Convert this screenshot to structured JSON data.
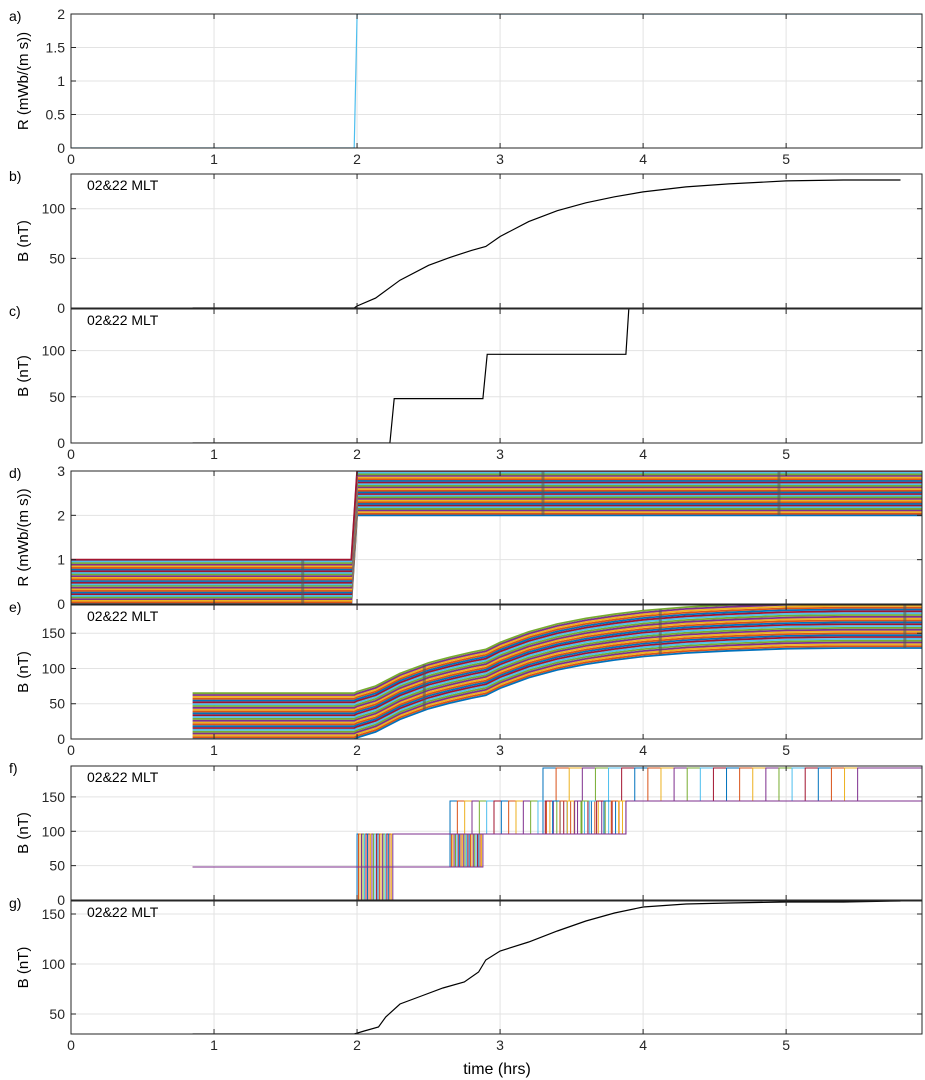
{
  "figure": {
    "xlabel": "time (hrs)",
    "colors": [
      "#0072BD",
      "#D95319",
      "#EDB120",
      "#7E2F8E",
      "#77AC30",
      "#4DBEEE",
      "#A2142F"
    ]
  },
  "chart_data": [
    {
      "id": "a",
      "panel_label": "a)",
      "type": "line",
      "ylabel": "R (mWb/(m s))",
      "xlim": [
        0,
        5.95
      ],
      "ylim": [
        0,
        2
      ],
      "xticks": [
        0,
        1,
        2,
        3,
        4,
        5
      ],
      "yticks": [
        0,
        0.5,
        1,
        1.5,
        2
      ],
      "ytick_labels": [
        "0",
        "0.5",
        "1",
        "1.5",
        "2"
      ],
      "show_xtick_labels": true,
      "grid": true,
      "series": [
        {
          "color": "#4DBEEE",
          "x": [
            0,
            1.98,
            2.0,
            5.95
          ],
          "y": [
            0,
            0,
            2,
            2
          ]
        }
      ]
    },
    {
      "id": "b",
      "panel_label": "b)",
      "type": "line",
      "ylabel": "B (nT)",
      "annotation": "02&22 MLT",
      "xlim": [
        0,
        5.95
      ],
      "ylim": [
        0,
        135
      ],
      "xticks": [
        0,
        1,
        2,
        3,
        4,
        5
      ],
      "yticks": [
        0,
        50,
        100
      ],
      "ytick_labels": [
        "0",
        "50",
        "100"
      ],
      "show_xtick_labels": false,
      "grid": true,
      "series": [
        {
          "color": "#000000",
          "x": [
            0.85,
            1.98,
            2.0,
            2.13,
            2.3,
            2.5,
            2.65,
            2.8,
            2.9,
            3.0,
            3.2,
            3.4,
            3.6,
            3.8,
            4.0,
            4.3,
            4.6,
            5.0,
            5.4,
            5.8
          ],
          "y": [
            0,
            0,
            2,
            10,
            28,
            43,
            51,
            58,
            62,
            72,
            87,
            98,
            106,
            112,
            117,
            122,
            125,
            128,
            129,
            129
          ]
        }
      ]
    },
    {
      "id": "c",
      "panel_label": "c)",
      "type": "line",
      "ylabel": "B (nT)",
      "annotation": "02&22 MLT",
      "xlim": [
        0,
        5.95
      ],
      "ylim": [
        0,
        145
      ],
      "xticks": [
        0,
        1,
        2,
        3,
        4,
        5
      ],
      "yticks": [
        0,
        50,
        100
      ],
      "ytick_labels": [
        "0",
        "50",
        "100"
      ],
      "show_xtick_labels": true,
      "grid": true,
      "series": [
        {
          "color": "#000000",
          "x": [
            0.85,
            2.23,
            2.26,
            2.88,
            2.91,
            3.88,
            3.9
          ],
          "y": [
            0,
            0,
            48,
            48,
            96,
            96,
            145
          ]
        }
      ]
    },
    {
      "id": "d",
      "panel_label": "d)",
      "type": "line",
      "ylabel": "R (mWb/(m s))",
      "xlim": [
        0,
        5.95
      ],
      "ylim": [
        0,
        3
      ],
      "xticks": [
        0,
        1,
        2,
        3,
        4,
        5
      ],
      "yticks": [
        0,
        1,
        2,
        3
      ],
      "ytick_labels": [
        "0",
        "1",
        "2",
        "3"
      ],
      "show_xtick_labels": false,
      "grid": true,
      "band": {
        "count": 28,
        "base": [
          0,
          0,
          2,
          2
        ],
        "top_offset": 1.0,
        "x": [
          0.0,
          1.96,
          2.0,
          5.95
        ],
        "dark_x": [
          1.62,
          3.3,
          4.95
        ]
      }
    },
    {
      "id": "e",
      "panel_label": "e)",
      "type": "line",
      "ylabel": "B (nT)",
      "annotation": "02&22 MLT",
      "xlim": [
        0,
        5.95
      ],
      "ylim": [
        0,
        190
      ],
      "xticks": [
        0,
        1,
        2,
        3,
        4,
        5
      ],
      "yticks": [
        0,
        50,
        100,
        150
      ],
      "ytick_labels": [
        "0",
        "50",
        "100",
        "150"
      ],
      "show_xtick_labels": true,
      "grid": true,
      "band": {
        "count": 26,
        "top_offset": 65,
        "x": [
          0.85,
          1.98,
          2.0,
          2.13,
          2.3,
          2.5,
          2.65,
          2.8,
          2.9,
          3.0,
          3.2,
          3.4,
          3.6,
          3.8,
          4.0,
          4.3,
          4.6,
          5.0,
          5.4,
          5.95
        ],
        "base": [
          0,
          0,
          2,
          10,
          28,
          43,
          51,
          58,
          62,
          72,
          87,
          98,
          106,
          112,
          117,
          122,
          125,
          128,
          129,
          129
        ],
        "dark_x": [
          2.47,
          4.12,
          5.83
        ]
      }
    },
    {
      "id": "f",
      "panel_label": "f)",
      "type": "line",
      "ylabel": "B (nT)",
      "annotation": "02&22 MLT",
      "xlim": [
        0,
        5.95
      ],
      "ylim": [
        0,
        195
      ],
      "xticks": [
        0,
        1,
        2,
        3,
        4,
        5
      ],
      "yticks": [
        0,
        50,
        100,
        150
      ],
      "ytick_labels": [
        "0",
        "50",
        "100",
        "150"
      ],
      "show_xtick_labels": false,
      "grid": true,
      "steps": {
        "count": 25,
        "x_start": 0.85,
        "levels": [
          0,
          48,
          96,
          144,
          192
        ],
        "first_x": [
          2.0,
          2.65,
          3.3
        ],
        "last_x": [
          2.25,
          2.88,
          3.88
        ],
        "upper_first_x": [
          0,
          2.0,
          2.65,
          3.3
        ],
        "upper_last_x": [
          0,
          2.25,
          3.88,
          5.5
        ]
      }
    },
    {
      "id": "g",
      "panel_label": "g)",
      "type": "line",
      "ylabel": "B (nT)",
      "annotation": "02&22 MLT",
      "xlim": [
        0,
        5.95
      ],
      "ylim": [
        30,
        163
      ],
      "xticks": [
        0,
        1,
        2,
        3,
        4,
        5
      ],
      "yticks": [
        50,
        100,
        150
      ],
      "ytick_labels": [
        "50",
        "100",
        "150"
      ],
      "show_xtick_labels": true,
      "grid": true,
      "series": [
        {
          "color": "#000000",
          "x": [
            0.85,
            1.98,
            2.05,
            2.15,
            2.2,
            2.3,
            2.45,
            2.6,
            2.75,
            2.85,
            2.9,
            3.0,
            3.2,
            3.4,
            3.6,
            3.8,
            4.0,
            4.3,
            4.6,
            5.0,
            5.4,
            5.8
          ],
          "y": [
            30,
            30,
            33,
            37,
            47,
            60,
            68,
            76,
            82,
            92,
            104,
            113,
            122,
            133,
            143,
            151,
            157,
            160,
            161,
            162,
            162,
            163
          ]
        }
      ]
    }
  ]
}
